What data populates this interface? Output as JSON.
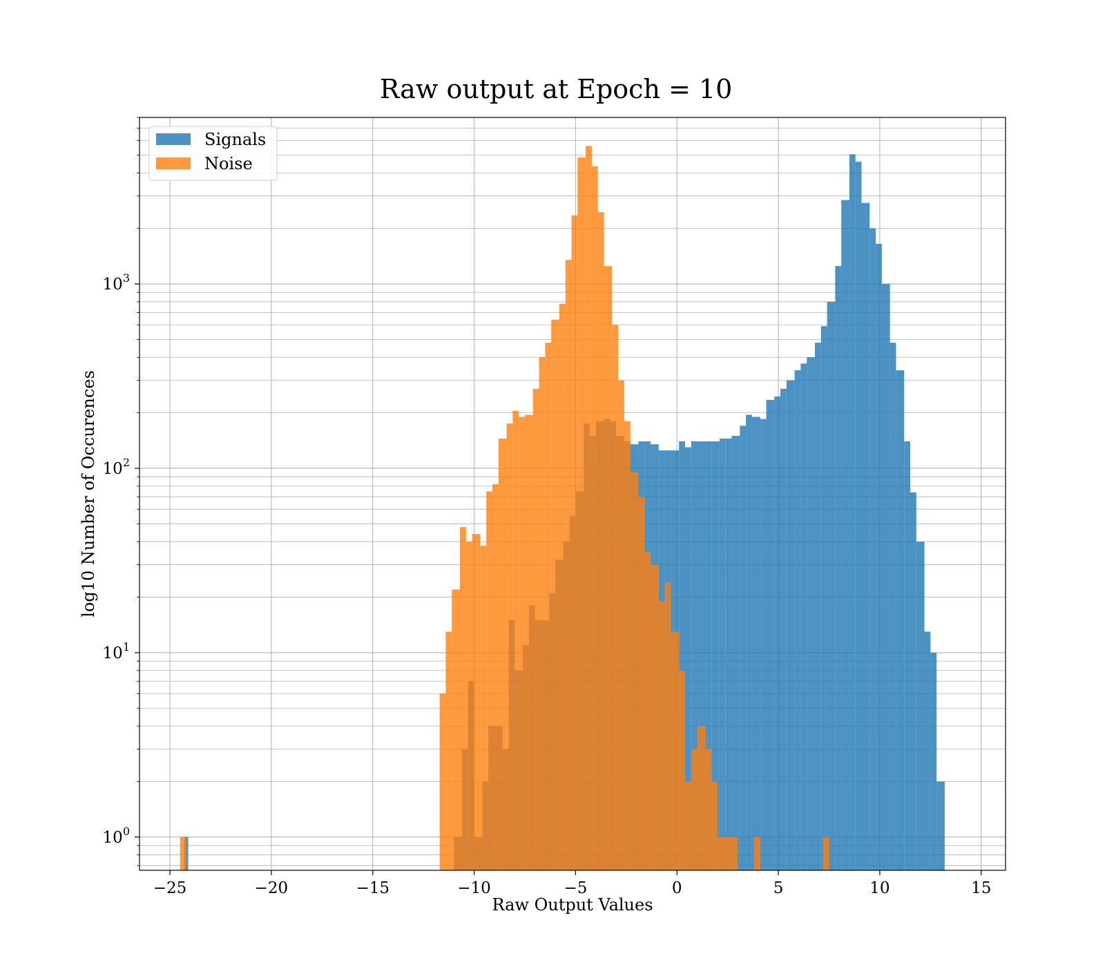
{
  "chart_data": {
    "type": "histogram",
    "title": "Raw output at Epoch = 10",
    "xlabel": "Raw Output Values",
    "ylabel": "log10 Number of Occurences",
    "yscale": "log",
    "xlim": [
      -26.5,
      16.2
    ],
    "ylim": [
      0.66,
      8000
    ],
    "xticks": [
      -25,
      -20,
      -15,
      -10,
      -5,
      0,
      5,
      10,
      15
    ],
    "xtick_labels": [
      "−25",
      "−20",
      "−15",
      "−10",
      "−5",
      "0",
      "5",
      "10",
      "15"
    ],
    "yticks": [
      1,
      10,
      100,
      1000
    ],
    "ytick_labels": [
      {
        "base": "10",
        "exp": "0"
      },
      {
        "base": "10",
        "exp": "1"
      },
      {
        "base": "10",
        "exp": "2"
      },
      {
        "base": "10",
        "exp": "3"
      }
    ],
    "grid": true,
    "legend_position": "top-left",
    "series": [
      {
        "name": "Signals",
        "color": "#1f77b4",
        "alpha": 0.8,
        "bins": [
          {
            "x0": -24.3,
            "x1": -24.1,
            "count": 1
          },
          {
            "x0": -11.0,
            "x1": -10.6,
            "count": 1
          },
          {
            "x0": -10.6,
            "x1": -10.3,
            "count": 3
          },
          {
            "x0": -10.3,
            "x1": -10.0,
            "count": 7
          },
          {
            "x0": -10.0,
            "x1": -9.6,
            "count": 1
          },
          {
            "x0": -9.6,
            "x1": -9.3,
            "count": 2
          },
          {
            "x0": -9.3,
            "x1": -8.9,
            "count": 4
          },
          {
            "x0": -8.9,
            "x1": -8.6,
            "count": 4
          },
          {
            "x0": -8.6,
            "x1": -8.3,
            "count": 3
          },
          {
            "x0": -8.3,
            "x1": -8.0,
            "count": 15
          },
          {
            "x0": -8.0,
            "x1": -7.6,
            "count": 8
          },
          {
            "x0": -7.6,
            "x1": -7.3,
            "count": 11
          },
          {
            "x0": -7.3,
            "x1": -7.0,
            "count": 18
          },
          {
            "x0": -7.0,
            "x1": -6.6,
            "count": 15
          },
          {
            "x0": -6.6,
            "x1": -6.3,
            "count": 15
          },
          {
            "x0": -6.3,
            "x1": -6.0,
            "count": 21
          },
          {
            "x0": -6.0,
            "x1": -5.6,
            "count": 32
          },
          {
            "x0": -5.6,
            "x1": -5.3,
            "count": 40
          },
          {
            "x0": -5.3,
            "x1": -5.0,
            "count": 55
          },
          {
            "x0": -5.0,
            "x1": -4.6,
            "count": 75
          },
          {
            "x0": -4.6,
            "x1": -4.3,
            "count": 175
          },
          {
            "x0": -4.3,
            "x1": -4.0,
            "count": 150
          },
          {
            "x0": -4.0,
            "x1": -3.6,
            "count": 180
          },
          {
            "x0": -3.6,
            "x1": -3.3,
            "count": 185
          },
          {
            "x0": -3.3,
            "x1": -3.0,
            "count": 180
          },
          {
            "x0": -3.0,
            "x1": -2.6,
            "count": 150
          },
          {
            "x0": -2.6,
            "x1": -2.3,
            "count": 140
          },
          {
            "x0": -2.3,
            "x1": -1.9,
            "count": 135
          },
          {
            "x0": -1.9,
            "x1": -1.6,
            "count": 140
          },
          {
            "x0": -1.6,
            "x1": -1.3,
            "count": 140
          },
          {
            "x0": -1.3,
            "x1": -0.9,
            "count": 135
          },
          {
            "x0": -0.9,
            "x1": -0.6,
            "count": 125
          },
          {
            "x0": -0.6,
            "x1": -0.3,
            "count": 125
          },
          {
            "x0": -0.3,
            "x1": 0.1,
            "count": 125
          },
          {
            "x0": 0.1,
            "x1": 0.4,
            "count": 140
          },
          {
            "x0": 0.4,
            "x1": 0.7,
            "count": 130
          },
          {
            "x0": 0.7,
            "x1": 1.1,
            "count": 140
          },
          {
            "x0": 1.1,
            "x1": 1.4,
            "count": 140
          },
          {
            "x0": 1.4,
            "x1": 1.7,
            "count": 140
          },
          {
            "x0": 1.7,
            "x1": 2.1,
            "count": 140
          },
          {
            "x0": 2.1,
            "x1": 2.4,
            "count": 145
          },
          {
            "x0": 2.4,
            "x1": 2.7,
            "count": 145
          },
          {
            "x0": 2.7,
            "x1": 3.1,
            "count": 150
          },
          {
            "x0": 3.1,
            "x1": 3.4,
            "count": 170
          },
          {
            "x0": 3.4,
            "x1": 3.7,
            "count": 195
          },
          {
            "x0": 3.7,
            "x1": 4.1,
            "count": 190
          },
          {
            "x0": 4.1,
            "x1": 4.4,
            "count": 185
          },
          {
            "x0": 4.4,
            "x1": 4.8,
            "count": 235
          },
          {
            "x0": 4.8,
            "x1": 5.1,
            "count": 245
          },
          {
            "x0": 5.1,
            "x1": 5.4,
            "count": 270
          },
          {
            "x0": 5.4,
            "x1": 5.8,
            "count": 300
          },
          {
            "x0": 5.8,
            "x1": 6.1,
            "count": 340
          },
          {
            "x0": 6.1,
            "x1": 6.4,
            "count": 370
          },
          {
            "x0": 6.4,
            "x1": 6.8,
            "count": 400
          },
          {
            "x0": 6.8,
            "x1": 7.1,
            "count": 480
          },
          {
            "x0": 7.1,
            "x1": 7.4,
            "count": 590
          },
          {
            "x0": 7.4,
            "x1": 7.8,
            "count": 800
          },
          {
            "x0": 7.8,
            "x1": 8.1,
            "count": 1250
          },
          {
            "x0": 8.1,
            "x1": 8.5,
            "count": 2850
          },
          {
            "x0": 8.5,
            "x1": 8.8,
            "count": 5050
          },
          {
            "x0": 8.8,
            "x1": 9.1,
            "count": 4600
          },
          {
            "x0": 9.1,
            "x1": 9.5,
            "count": 2750
          },
          {
            "x0": 9.5,
            "x1": 9.8,
            "count": 2000
          },
          {
            "x0": 9.8,
            "x1": 10.1,
            "count": 1650
          },
          {
            "x0": 10.1,
            "x1": 10.5,
            "count": 1000
          },
          {
            "x0": 10.5,
            "x1": 10.8,
            "count": 480
          },
          {
            "x0": 10.8,
            "x1": 11.2,
            "count": 340
          },
          {
            "x0": 11.2,
            "x1": 11.5,
            "count": 140
          },
          {
            "x0": 11.5,
            "x1": 11.8,
            "count": 74
          },
          {
            "x0": 11.8,
            "x1": 12.2,
            "count": 40
          },
          {
            "x0": 12.2,
            "x1": 12.5,
            "count": 13
          },
          {
            "x0": 12.5,
            "x1": 12.8,
            "count": 10
          },
          {
            "x0": 12.8,
            "x1": 13.2,
            "count": 2
          }
        ]
      },
      {
        "name": "Noise",
        "color": "#ff7f0e",
        "alpha": 0.8,
        "bins": [
          {
            "x0": -24.5,
            "x1": -24.2,
            "count": 1
          },
          {
            "x0": -11.7,
            "x1": -11.4,
            "count": 6
          },
          {
            "x0": -11.4,
            "x1": -11.1,
            "count": 13
          },
          {
            "x0": -11.1,
            "x1": -10.7,
            "count": 22
          },
          {
            "x0": -10.7,
            "x1": -10.4,
            "count": 48
          },
          {
            "x0": -10.4,
            "x1": -10.1,
            "count": 40
          },
          {
            "x0": -10.1,
            "x1": -9.7,
            "count": 44
          },
          {
            "x0": -9.7,
            "x1": -9.4,
            "count": 38
          },
          {
            "x0": -9.4,
            "x1": -9.1,
            "count": 75
          },
          {
            "x0": -9.1,
            "x1": -8.8,
            "count": 82
          },
          {
            "x0": -8.8,
            "x1": -8.4,
            "count": 145
          },
          {
            "x0": -8.4,
            "x1": -8.1,
            "count": 175
          },
          {
            "x0": -8.1,
            "x1": -7.8,
            "count": 205
          },
          {
            "x0": -7.8,
            "x1": -7.5,
            "count": 190
          },
          {
            "x0": -7.5,
            "x1": -7.1,
            "count": 195
          },
          {
            "x0": -7.1,
            "x1": -6.8,
            "count": 270
          },
          {
            "x0": -6.8,
            "x1": -6.5,
            "count": 400
          },
          {
            "x0": -6.5,
            "x1": -6.2,
            "count": 480
          },
          {
            "x0": -6.2,
            "x1": -5.8,
            "count": 640
          },
          {
            "x0": -5.8,
            "x1": -5.5,
            "count": 780
          },
          {
            "x0": -5.5,
            "x1": -5.2,
            "count": 1350
          },
          {
            "x0": -5.2,
            "x1": -4.9,
            "count": 2350
          },
          {
            "x0": -4.9,
            "x1": -4.5,
            "count": 4850
          },
          {
            "x0": -4.5,
            "x1": -4.2,
            "count": 5600
          },
          {
            "x0": -4.2,
            "x1": -3.9,
            "count": 4350
          },
          {
            "x0": -3.9,
            "x1": -3.6,
            "count": 2450
          },
          {
            "x0": -3.6,
            "x1": -3.2,
            "count": 1250
          },
          {
            "x0": -3.2,
            "x1": -2.9,
            "count": 600
          },
          {
            "x0": -2.9,
            "x1": -2.6,
            "count": 300
          },
          {
            "x0": -2.6,
            "x1": -2.3,
            "count": 180
          },
          {
            "x0": -2.3,
            "x1": -1.9,
            "count": 95
          },
          {
            "x0": -1.9,
            "x1": -1.6,
            "count": 70
          },
          {
            "x0": -1.6,
            "x1": -1.3,
            "count": 35
          },
          {
            "x0": -1.3,
            "x1": -0.9,
            "count": 30
          },
          {
            "x0": -0.9,
            "x1": -0.6,
            "count": 19
          },
          {
            "x0": -0.6,
            "x1": -0.3,
            "count": 24
          },
          {
            "x0": -0.3,
            "x1": 0.1,
            "count": 13
          },
          {
            "x0": 0.1,
            "x1": 0.4,
            "count": 8
          },
          {
            "x0": 0.4,
            "x1": 0.7,
            "count": 2
          },
          {
            "x0": 0.7,
            "x1": 1.0,
            "count": 3
          },
          {
            "x0": 1.0,
            "x1": 1.4,
            "count": 4
          },
          {
            "x0": 1.4,
            "x1": 1.7,
            "count": 3
          },
          {
            "x0": 1.7,
            "x1": 2.0,
            "count": 2
          },
          {
            "x0": 2.0,
            "x1": 2.4,
            "count": 1
          },
          {
            "x0": 2.4,
            "x1": 2.7,
            "count": 1
          },
          {
            "x0": 2.7,
            "x1": 3.0,
            "count": 1
          },
          {
            "x0": 3.8,
            "x1": 4.1,
            "count": 1
          },
          {
            "x0": 7.2,
            "x1": 7.5,
            "count": 1
          }
        ]
      }
    ]
  }
}
